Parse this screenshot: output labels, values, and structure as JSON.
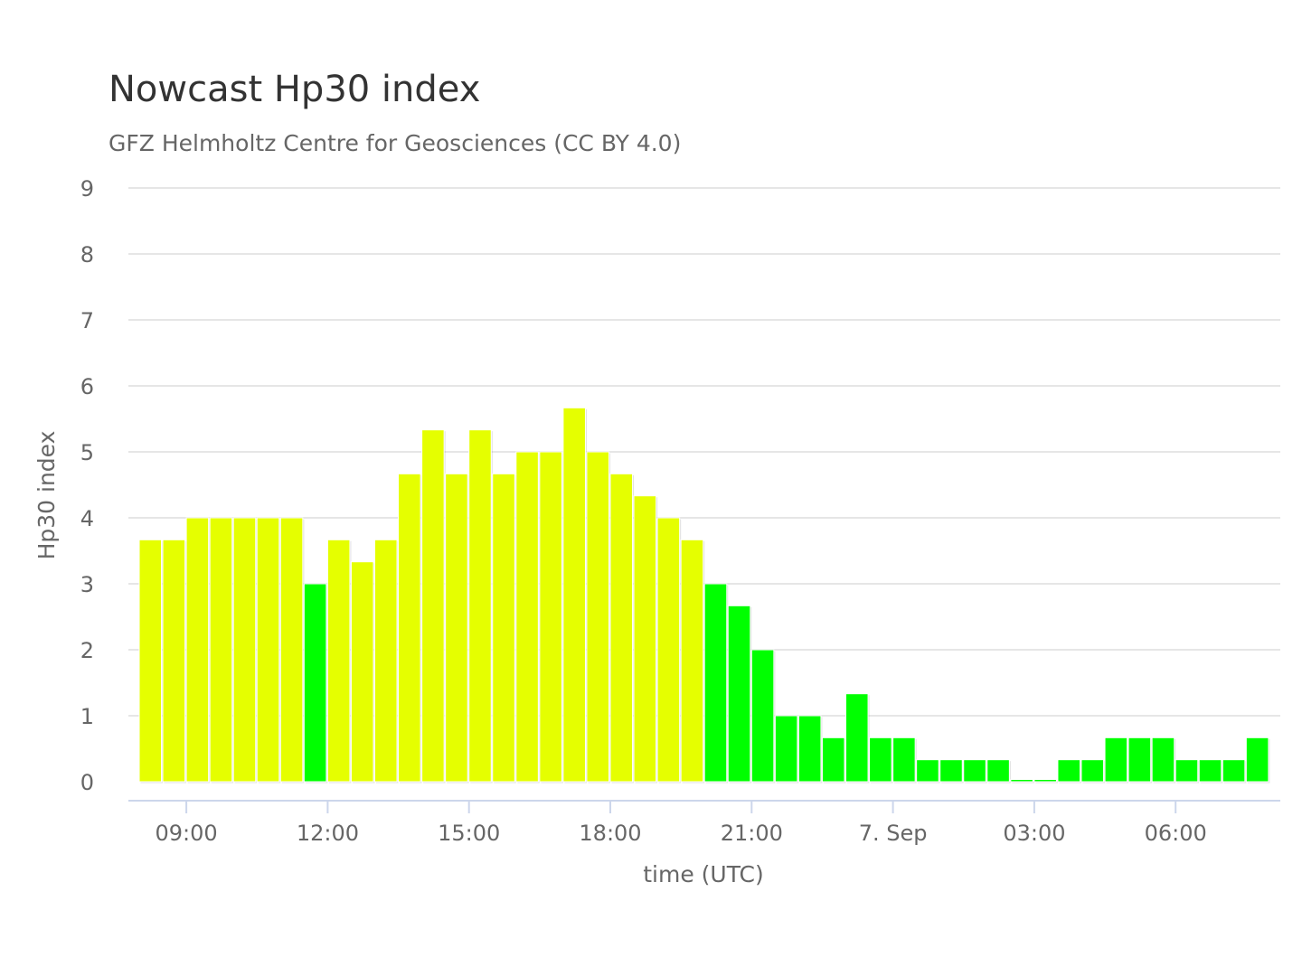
{
  "chart_data": {
    "type": "bar",
    "title": "Nowcast Hp30 index",
    "subtitle": "GFZ Helmholtz Centre for Geosciences (CC BY 4.0)",
    "xlabel": "time (UTC)",
    "ylabel": "Hp30 index",
    "ylim": [
      0,
      9
    ],
    "yticks": [
      "0",
      "1",
      "2",
      "3",
      "4",
      "5",
      "6",
      "7",
      "8",
      "9"
    ],
    "x_start": "08:00",
    "interval_minutes": 30,
    "xticks": [
      {
        "label": "09:00",
        "bar_index": 2
      },
      {
        "label": "12:00",
        "bar_index": 8
      },
      {
        "label": "15:00",
        "bar_index": 14
      },
      {
        "label": "18:00",
        "bar_index": 20
      },
      {
        "label": "21:00",
        "bar_index": 26
      },
      {
        "label": "7. Sep",
        "bar_index": 32
      },
      {
        "label": "03:00",
        "bar_index": 38
      },
      {
        "label": "06:00",
        "bar_index": 44
      }
    ],
    "values": [
      3.667,
      3.667,
      4,
      4,
      4,
      4,
      4,
      3,
      3.667,
      3.333,
      3.667,
      4.667,
      5.333,
      4.667,
      5.333,
      4.667,
      5,
      5,
      5.667,
      5,
      4.667,
      4.333,
      4,
      3.667,
      3,
      2.667,
      2,
      1,
      1,
      0.667,
      1.333,
      0.667,
      0.667,
      0.333,
      0.333,
      0.333,
      0.333,
      0,
      0,
      0.333,
      0.333,
      0.667,
      0.667,
      0.667,
      0.333,
      0.333,
      0.333,
      0.667
    ],
    "colors": {
      "low": "#00ff00",
      "elevated": "#e5ff00",
      "grid": "#e6e6e6",
      "axis": "#ccd6eb",
      "label": "#666666"
    },
    "color_threshold": 3,
    "grid": true,
    "legend": "none"
  }
}
